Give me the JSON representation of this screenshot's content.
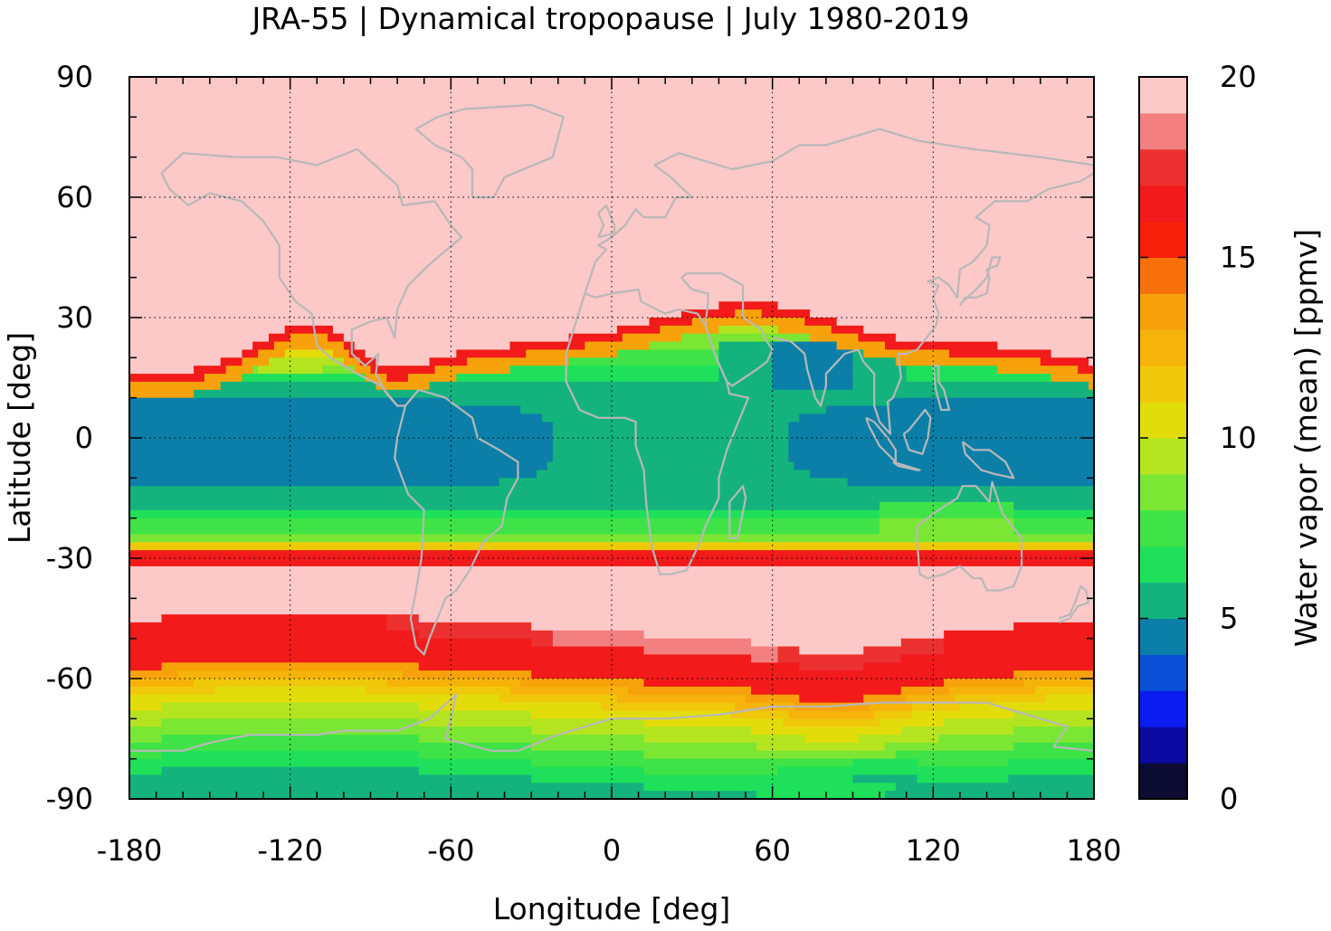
{
  "chart_data": {
    "type": "heatmap",
    "title": "JRA-55 | Dynamical tropopause | July 1980-2019",
    "xlabel": "Longitude [deg]",
    "ylabel": "Latitude [deg]",
    "xlim": [
      -180,
      180
    ],
    "ylim": [
      -90,
      90
    ],
    "xticks": [
      -180,
      -120,
      -60,
      0,
      60,
      120,
      180
    ],
    "yticks": [
      90,
      60,
      30,
      0,
      -30,
      -60,
      -90
    ],
    "grid": true,
    "colorbar": {
      "label": "Water vapor (mean) [ppmv]",
      "range": [
        0,
        20
      ],
      "ticks": [
        20,
        15,
        10,
        5,
        0
      ],
      "levels": [
        {
          "from": 0,
          "to": 1,
          "color": "#0b0b33"
        },
        {
          "from": 1,
          "to": 2,
          "color": "#0a0aa0"
        },
        {
          "from": 2,
          "to": 3,
          "color": "#0a1cf0"
        },
        {
          "from": 3,
          "to": 4,
          "color": "#0a4fd6"
        },
        {
          "from": 4,
          "to": 5,
          "color": "#0b7fa8"
        },
        {
          "from": 5,
          "to": 6,
          "color": "#14b37d"
        },
        {
          "from": 6,
          "to": 7,
          "color": "#1ee05a"
        },
        {
          "from": 7,
          "to": 8,
          "color": "#3fe348"
        },
        {
          "from": 8,
          "to": 9,
          "color": "#7be634"
        },
        {
          "from": 9,
          "to": 10,
          "color": "#b4e420"
        },
        {
          "from": 10,
          "to": 11,
          "color": "#e2dd0a"
        },
        {
          "from": 11,
          "to": 12,
          "color": "#f0c80a"
        },
        {
          "from": 12,
          "to": 13,
          "color": "#f6b30a"
        },
        {
          "from": 13,
          "to": 14,
          "color": "#f7a20a"
        },
        {
          "from": 14,
          "to": 15,
          "color": "#f7700a"
        },
        {
          "from": 15,
          "to": 16,
          "color": "#f7200a"
        },
        {
          "from": 16,
          "to": 17,
          "color": "#f21a1a"
        },
        {
          "from": 17,
          "to": 18,
          "color": "#ec3030"
        },
        {
          "from": 18,
          "to": 19,
          "color": "#f28080"
        },
        {
          "from": 19,
          "to": 20,
          "color": "#fcc8c8"
        }
      ]
    },
    "field": {
      "description_bands_by_latitude": [
        {
          "lat_range": [
            25,
            90
          ],
          "value": 19.5
        },
        {
          "lat_range": [
            20,
            25
          ],
          "value": 16.0
        },
        {
          "lat_range": [
            10,
            20
          ],
          "value": 8.0
        },
        {
          "lat_range": [
            -15,
            10
          ],
          "value": 4.5
        },
        {
          "lat_range": [
            -25,
            -15
          ],
          "value": 6.5
        },
        {
          "lat_range": [
            -30,
            -25
          ],
          "value": 13.0
        },
        {
          "lat_range": [
            -32,
            -29
          ],
          "value": 16.5
        },
        {
          "lat_range": [
            -50,
            -32
          ],
          "value": 19.5
        },
        {
          "lat_range": [
            -60,
            -50
          ],
          "value": 16.5
        },
        {
          "lat_range": [
            -70,
            -60
          ],
          "value": 12.5
        },
        {
          "lat_range": [
            -80,
            -70
          ],
          "value": 9.0
        },
        {
          "lat_range": [
            -90,
            -80
          ],
          "value": 6.5
        }
      ]
    },
    "overlay": "coastlines"
  },
  "colors": {
    "coastline": "#b8b8b8",
    "grid": "#000000"
  }
}
